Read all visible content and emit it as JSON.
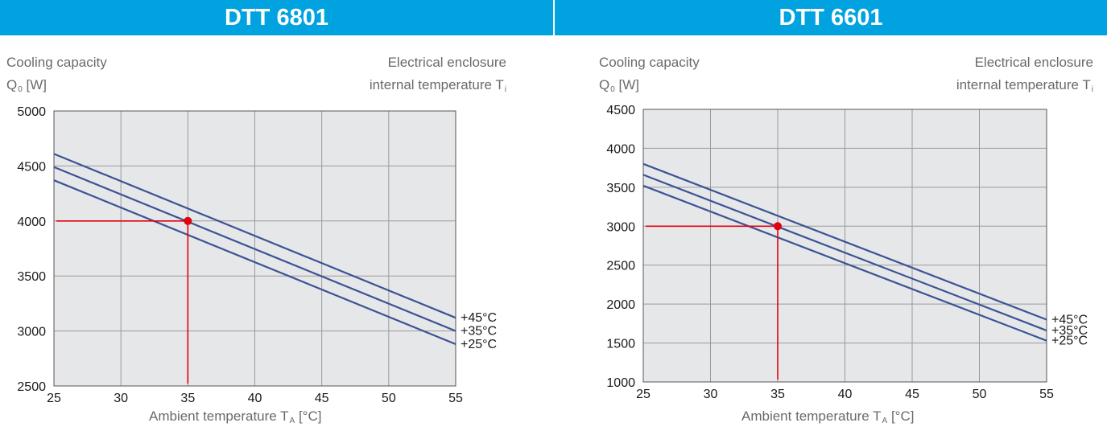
{
  "panels": [
    {
      "title": "DTT 6801",
      "ylabel_line1": "Cooling capacity",
      "ylabel_line2": "Q",
      "ylabel_sub": "0",
      "ylabel_unit": " [W]",
      "rlabel_line1": "Electrical enclosure",
      "rlabel_line2": "internal temperature T",
      "rlabel_sub": "i",
      "xlabel": "Ambient temperature T",
      "xlabel_sub": "A",
      "xlabel_unit": " [°C]"
    },
    {
      "title": "DTT 6601",
      "ylabel_line1": "Cooling capacity",
      "ylabel_line2": "Q",
      "ylabel_sub": "0",
      "ylabel_unit": " [W]",
      "rlabel_line1": "Electrical enclosure",
      "rlabel_line2": "internal temperature T",
      "rlabel_sub": "i",
      "xlabel": "Ambient temperature T",
      "xlabel_sub": "A",
      "xlabel_unit": " [°C]"
    }
  ],
  "colors": {
    "header": "#00a3e0",
    "plot_bg": "#e6e7e9",
    "grid": "#9a9a9a",
    "curve": "#3c5394",
    "marker": "#e3000f"
  },
  "chart_data": [
    {
      "type": "line",
      "title": "DTT 6801",
      "xlabel": "Ambient temperature TA [°C]",
      "ylabel": "Cooling capacity Q0 [W]",
      "xlim": [
        25,
        55
      ],
      "ylim": [
        2500,
        5000
      ],
      "xticks": [
        25,
        30,
        35,
        40,
        45,
        50,
        55
      ],
      "yticks": [
        2500,
        3000,
        3500,
        4000,
        4500,
        5000
      ],
      "grid": true,
      "series": [
        {
          "name": "+45°C",
          "x": [
            25,
            55
          ],
          "y": [
            4610,
            3120
          ]
        },
        {
          "name": "+35°C",
          "x": [
            25,
            55
          ],
          "y": [
            4490,
            3000
          ]
        },
        {
          "name": "+25°C",
          "x": [
            25,
            55
          ],
          "y": [
            4370,
            2880
          ]
        }
      ],
      "operating_point": {
        "x": 35,
        "y": 4000
      }
    },
    {
      "type": "line",
      "title": "DTT 6601",
      "xlabel": "Ambient temperature TA [°C]",
      "ylabel": "Cooling capacity Q0 [W]",
      "xlim": [
        25,
        55
      ],
      "ylim": [
        1000,
        4500
      ],
      "xticks": [
        25,
        30,
        35,
        40,
        45,
        50,
        55
      ],
      "yticks": [
        1000,
        1500,
        2000,
        2500,
        3000,
        3500,
        4000,
        4500
      ],
      "grid": true,
      "series": [
        {
          "name": "+45°C",
          "x": [
            25,
            55
          ],
          "y": [
            3800,
            1800
          ]
        },
        {
          "name": "+35°C",
          "x": [
            25,
            55
          ],
          "y": [
            3660,
            1660
          ]
        },
        {
          "name": "+25°C",
          "x": [
            25,
            55
          ],
          "y": [
            3520,
            1530
          ]
        }
      ],
      "operating_point": {
        "x": 35,
        "y": 3000
      }
    }
  ]
}
